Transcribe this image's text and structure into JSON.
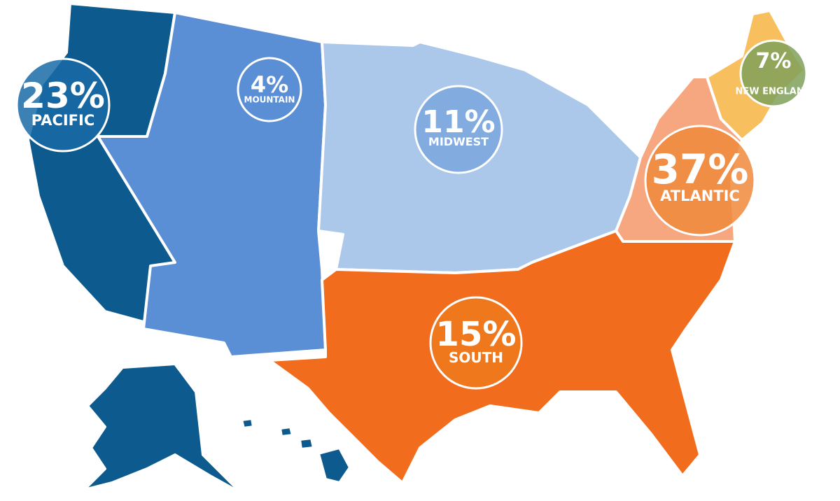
{
  "map": {
    "regions": [
      {
        "name": "PACIFIC",
        "value": 23,
        "value_label": "23%",
        "color": "#0d5a8f",
        "bubble_color": "#1a6ba6"
      },
      {
        "name": "MOUNTAIN",
        "value": 4,
        "value_label": "4%",
        "color": "#5a8fd5",
        "bubble_color": "#5a8fd5"
      },
      {
        "name": "MIDWEST",
        "value": 11,
        "value_label": "11%",
        "color": "#abc7ea",
        "bubble_color": "#7aa6de"
      },
      {
        "name": "ATLANTIC",
        "value": 37,
        "value_label": "37%",
        "color": "#f7a77f",
        "bubble_color": "#f08a3c"
      },
      {
        "name": "SOUTH",
        "value": 15,
        "value_label": "15%",
        "color": "#f26c1e",
        "bubble_color": "#ee7a1c"
      },
      {
        "name": "NEW ENGLAND",
        "value": 7,
        "value_label": "7%",
        "color": "#f8bf5f",
        "bubble_color": "#7fa05a"
      }
    ]
  }
}
